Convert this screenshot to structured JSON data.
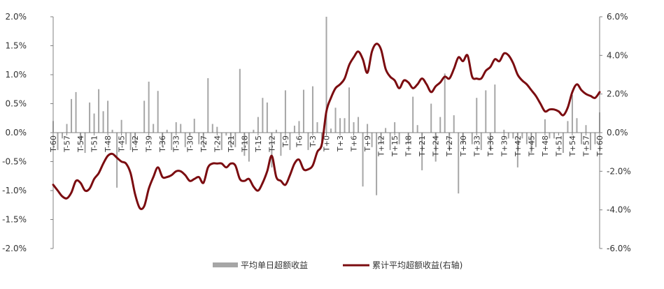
{
  "chart_data": {
    "type": "bar+line",
    "colors": {
      "bars": "#a6a6a6",
      "line": "#7b0c10",
      "axis": "#808080",
      "text": "#333333"
    },
    "x_range": [
      -60,
      60
    ],
    "left_axis": {
      "ylim": [
        -2.0,
        2.0
      ],
      "ticks": [
        "2.0%",
        "1.5%",
        "1.0%",
        "0.5%",
        "0.0%",
        "-0.5%",
        "-1.0%",
        "-1.5%",
        "-2.0%"
      ],
      "tick_values": [
        2.0,
        1.5,
        1.0,
        0.5,
        0.0,
        -0.5,
        -1.0,
        -1.5,
        -2.0
      ]
    },
    "right_axis": {
      "ylim": [
        -6.0,
        6.0
      ],
      "ticks": [
        "6.0%",
        "4.0%",
        "2.0%",
        "0.0%",
        "-2.0%",
        "-4.0%",
        "-6.0%"
      ],
      "tick_values": [
        6.0,
        4.0,
        2.0,
        0.0,
        -2.0,
        -4.0,
        -6.0
      ]
    },
    "x_tick_labels": [
      "T-60",
      "T-57",
      "T-54",
      "T-51",
      "T-48",
      "T-45",
      "T-42",
      "T-39",
      "T-36",
      "T-33",
      "T-30",
      "T-27",
      "T-24",
      "T-21",
      "T-18",
      "T-15",
      "T-12",
      "T-9",
      "T-6",
      "T-3",
      "T+0",
      "T+3",
      "T+6",
      "T+9",
      "T+12",
      "T+15",
      "T+18",
      "T+21",
      "T+24",
      "T+27",
      "T+30",
      "T+33",
      "T+36",
      "T+39",
      "T+42",
      "T+45",
      "T+48",
      "T+51",
      "T+54",
      "T+57",
      "T+60"
    ],
    "x_tick_values": [
      -60,
      -57,
      -54,
      -51,
      -48,
      -45,
      -42,
      -39,
      -36,
      -33,
      -30,
      -27,
      -24,
      -21,
      -18,
      -15,
      -12,
      -9,
      -6,
      -3,
      0,
      3,
      6,
      9,
      12,
      15,
      18,
      21,
      24,
      27,
      30,
      33,
      36,
      39,
      42,
      45,
      48,
      51,
      54,
      57,
      60
    ],
    "series": [
      {
        "name": "平均单日超额收益",
        "kind": "bar",
        "axis": "left",
        "x": [
          -60,
          -59,
          -58,
          -57,
          -56,
          -55,
          -54,
          -53,
          -52,
          -51,
          -50,
          -49,
          -48,
          -47,
          -46,
          -45,
          -44,
          -43,
          -42,
          -41,
          -40,
          -39,
          -38,
          -37,
          -36,
          -35,
          -34,
          -33,
          -32,
          -31,
          -30,
          -29,
          -28,
          -27,
          -26,
          -25,
          -24,
          -23,
          -22,
          -21,
          -20,
          -19,
          -18,
          -17,
          -16,
          -15,
          -14,
          -13,
          -12,
          -11,
          -10,
          -9,
          -8,
          -7,
          -6,
          -5,
          -4,
          -3,
          -2,
          -1,
          0,
          1,
          2,
          3,
          4,
          5,
          6,
          7,
          8,
          9,
          10,
          11,
          12,
          13,
          14,
          15,
          16,
          17,
          18,
          19,
          20,
          21,
          22,
          23,
          24,
          25,
          26,
          27,
          28,
          29,
          30,
          31,
          32,
          33,
          34,
          35,
          36,
          37,
          38,
          39,
          40,
          41,
          42,
          43,
          44,
          45,
          46,
          47,
          48,
          49,
          50,
          51,
          52,
          53,
          54,
          55,
          56,
          57,
          58,
          59,
          60
        ],
        "values": [
          0.2,
          -0.3,
          -0.1,
          0.15,
          0.58,
          0.7,
          -0.15,
          -0.35,
          0.52,
          0.33,
          0.75,
          0.37,
          0.55,
          0.05,
          -0.95,
          0.22,
          -0.2,
          -0.3,
          -0.15,
          0.0,
          0.55,
          0.88,
          0.15,
          0.72,
          -0.25,
          0.05,
          -0.3,
          0.18,
          0.15,
          -0.25,
          -0.05,
          0.24,
          -0.2,
          -0.25,
          0.94,
          0.15,
          0.1,
          -0.3,
          -0.05,
          -0.25,
          -0.25,
          1.1,
          -0.4,
          -0.5,
          0.05,
          0.27,
          0.6,
          0.52,
          -0.6,
          0.05,
          -0.4,
          0.73,
          -0.3,
          0.12,
          0.2,
          0.74,
          -0.3,
          0.8,
          0.18,
          -0.25,
          2.0,
          0.07,
          0.43,
          0.25,
          0.25,
          0.78,
          0.18,
          0.27,
          -0.93,
          0.15,
          -0.25,
          -1.08,
          -0.2,
          0.08,
          -0.3,
          0.18,
          -0.2,
          0.0,
          -0.2,
          0.62,
          0.13,
          -0.65,
          0.0,
          0.5,
          -0.5,
          0.27,
          1.02,
          -0.3,
          0.3,
          -1.05,
          -0.2,
          0.0,
          -0.2,
          0.6,
          -0.3,
          0.73,
          -0.3,
          0.83,
          0.0,
          0.05,
          -0.1,
          -0.1,
          -0.6,
          -0.1,
          -0.2,
          -0.35,
          -0.25,
          0.0,
          0.23,
          -0.1,
          -0.1,
          0.0,
          -0.35,
          0.2,
          0.65,
          0.25,
          -0.2,
          0.13,
          -0.3,
          -0.2,
          0.35
        ]
      },
      {
        "name": "累计平均超额收益(右轴)",
        "kind": "line",
        "axis": "right",
        "x": [
          -60,
          -59,
          -58,
          -57,
          -56,
          -55,
          -54,
          -53,
          -52,
          -51,
          -50,
          -49,
          -48,
          -47,
          -46,
          -45,
          -44,
          -43,
          -42,
          -41,
          -40,
          -39,
          -38,
          -37,
          -36,
          -35,
          -34,
          -33,
          -32,
          -31,
          -30,
          -29,
          -28,
          -27,
          -26,
          -25,
          -24,
          -23,
          -22,
          -21,
          -20,
          -19,
          -18,
          -17,
          -16,
          -15,
          -14,
          -13,
          -12,
          -11,
          -10,
          -9,
          -8,
          -7,
          -6,
          -5,
          -4,
          -3,
          -2,
          -1,
          0,
          1,
          2,
          3,
          4,
          5,
          6,
          7,
          8,
          9,
          10,
          11,
          12,
          13,
          14,
          15,
          16,
          17,
          18,
          19,
          20,
          21,
          22,
          23,
          24,
          25,
          26,
          27,
          28,
          29,
          30,
          31,
          32,
          33,
          34,
          35,
          36,
          37,
          38,
          39,
          40,
          41,
          42,
          43,
          44,
          45,
          46,
          47,
          48,
          49,
          50,
          51,
          52,
          53,
          54,
          55,
          56,
          57,
          58,
          59,
          60
        ],
        "values": [
          -2.7,
          -3.0,
          -3.3,
          -3.4,
          -3.1,
          -2.5,
          -2.6,
          -3.0,
          -2.9,
          -2.4,
          -2.1,
          -1.6,
          -1.2,
          -1.1,
          -1.3,
          -1.5,
          -1.6,
          -2.1,
          -3.2,
          -3.9,
          -3.8,
          -2.9,
          -2.3,
          -1.8,
          -2.3,
          -2.3,
          -2.2,
          -2.0,
          -2.0,
          -2.2,
          -2.5,
          -2.4,
          -2.3,
          -2.6,
          -1.8,
          -1.6,
          -1.6,
          -1.6,
          -1.8,
          -1.6,
          -1.7,
          -2.4,
          -2.5,
          -2.4,
          -2.8,
          -3.0,
          -2.6,
          -2.0,
          -1.2,
          -2.3,
          -2.5,
          -2.7,
          -2.2,
          -1.6,
          -1.4,
          -1.9,
          -1.9,
          -1.7,
          -1.0,
          -0.6,
          1.1,
          1.8,
          2.3,
          2.5,
          2.8,
          3.5,
          3.9,
          4.2,
          3.8,
          3.1,
          4.2,
          4.6,
          4.3,
          3.3,
          2.9,
          2.7,
          2.3,
          2.7,
          2.6,
          2.3,
          2.5,
          2.8,
          2.5,
          2.1,
          2.4,
          2.6,
          2.9,
          2.8,
          3.3,
          3.9,
          3.7,
          4.0,
          2.9,
          2.8,
          2.8,
          3.2,
          3.4,
          3.8,
          3.7,
          4.1,
          4.0,
          3.6,
          3.0,
          2.7,
          2.5,
          2.2,
          1.9,
          1.5,
          1.1,
          1.2,
          1.2,
          1.1,
          0.9,
          1.3,
          2.1,
          2.5,
          2.2,
          2.0,
          1.9,
          1.8,
          2.1
        ]
      }
    ]
  }
}
